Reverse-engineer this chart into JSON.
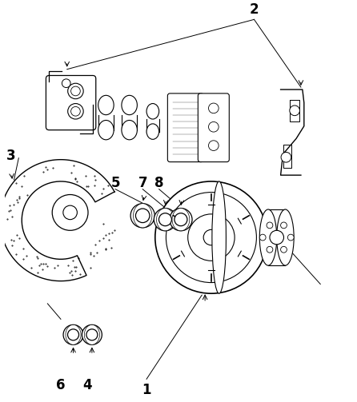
{
  "background_color": "#ffffff",
  "line_color": "#000000",
  "figsize": [
    4.46,
    5.03
  ],
  "dpi": 100
}
